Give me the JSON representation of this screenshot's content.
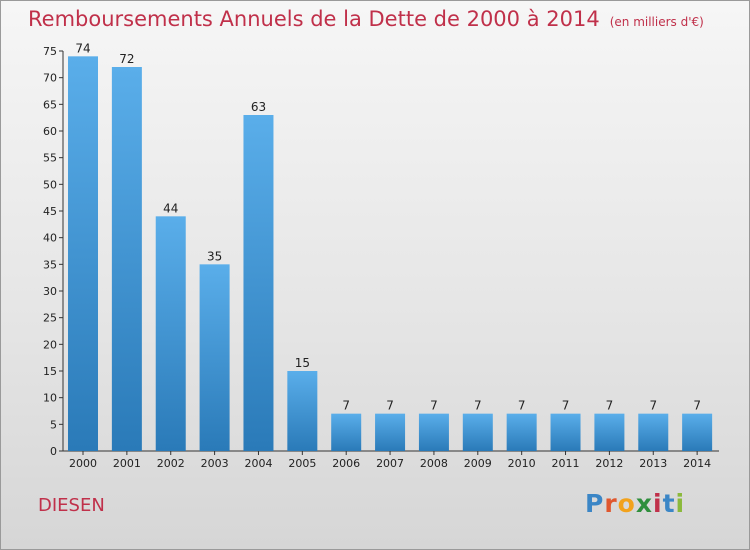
{
  "title": "Remboursements Annuels de la Dette de 2000 à 2014",
  "subtitle": "(en milliers d'€)",
  "city": "DIESEN",
  "logo": {
    "text": [
      "P",
      "r",
      "o",
      "x",
      "i",
      "t",
      "i"
    ]
  },
  "colors": {
    "title": "#c0304a",
    "bar_top": "#5aaeea",
    "bar_bottom": "#2a7ab8"
  },
  "chart_data": {
    "type": "bar",
    "categories": [
      "2000",
      "2001",
      "2002",
      "2003",
      "2004",
      "2005",
      "2006",
      "2007",
      "2008",
      "2009",
      "2010",
      "2011",
      "2012",
      "2013",
      "2014"
    ],
    "values": [
      74,
      72,
      44,
      35,
      63,
      15,
      7,
      7,
      7,
      7,
      7,
      7,
      7,
      7,
      7
    ],
    "title": "Remboursements Annuels de la Dette de 2000 à 2014",
    "xlabel": "",
    "ylabel": "",
    "ylim": [
      0,
      75
    ],
    "yticks": [
      0,
      5,
      10,
      15,
      20,
      25,
      30,
      35,
      40,
      45,
      50,
      55,
      60,
      65,
      70,
      75
    ],
    "grid": false,
    "legend": "none"
  }
}
